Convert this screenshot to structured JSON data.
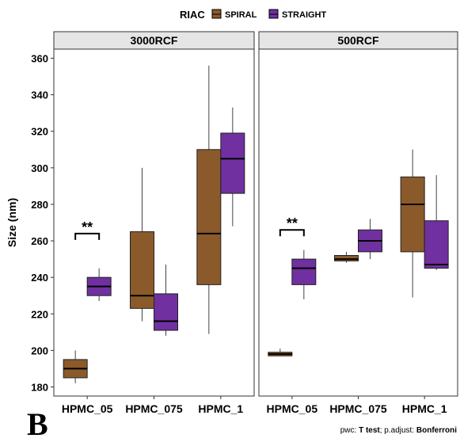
{
  "chart_data": {
    "type": "boxplot",
    "legend": {
      "title": "RIAC",
      "position": "top",
      "entries": [
        {
          "name": "SPIRAL",
          "color": "#8B5A2B"
        },
        {
          "name": "STRAIGHT",
          "color": "#7030A0"
        }
      ]
    },
    "ylabel": "Size (nm)",
    "ylim": [
      175,
      365
    ],
    "yticks": [
      180,
      200,
      220,
      240,
      260,
      280,
      300,
      320,
      340,
      360
    ],
    "categories": [
      "HPMC_05",
      "HPMC_075",
      "HPMC_1"
    ],
    "panels": [
      {
        "title": "3000RCF",
        "boxes": [
          {
            "category": "HPMC_05",
            "series": "SPIRAL",
            "min": 182,
            "q1": 185,
            "median": 190,
            "q3": 195,
            "max": 200
          },
          {
            "category": "HPMC_05",
            "series": "STRAIGHT",
            "min": 227,
            "q1": 230,
            "median": 235,
            "q3": 240,
            "max": 245
          },
          {
            "category": "HPMC_075",
            "series": "SPIRAL",
            "min": 216,
            "q1": 223,
            "median": 230,
            "q3": 265,
            "max": 300
          },
          {
            "category": "HPMC_075",
            "series": "STRAIGHT",
            "min": 208,
            "q1": 211,
            "median": 216,
            "q3": 231,
            "max": 247
          },
          {
            "category": "HPMC_1",
            "series": "SPIRAL",
            "min": 209,
            "q1": 236,
            "median": 264,
            "q3": 310,
            "max": 356
          },
          {
            "category": "HPMC_1",
            "series": "STRAIGHT",
            "min": 268,
            "q1": 286,
            "median": 305,
            "q3": 319,
            "max": 333
          }
        ],
        "annotations": [
          {
            "category": "HPMC_05",
            "label": "**",
            "y": 264
          }
        ]
      },
      {
        "title": "500RCF",
        "boxes": [
          {
            "category": "HPMC_05",
            "series": "SPIRAL",
            "min": 197,
            "q1": 197,
            "median": 198,
            "q3": 199,
            "max": 201
          },
          {
            "category": "HPMC_05",
            "series": "STRAIGHT",
            "min": 228,
            "q1": 236,
            "median": 245,
            "q3": 250,
            "max": 255
          },
          {
            "category": "HPMC_075",
            "series": "SPIRAL",
            "min": 248,
            "q1": 249,
            "median": 250,
            "q3": 252,
            "max": 254
          },
          {
            "category": "HPMC_075",
            "series": "STRAIGHT",
            "min": 250,
            "q1": 254,
            "median": 260,
            "q3": 266,
            "max": 272
          },
          {
            "category": "HPMC_1",
            "series": "SPIRAL",
            "min": 229,
            "q1": 254,
            "median": 280,
            "q3": 295,
            "max": 310
          },
          {
            "category": "HPMC_1",
            "series": "STRAIGHT",
            "min": 244,
            "q1": 245,
            "median": 247,
            "q3": 271,
            "max": 296
          }
        ],
        "annotations": [
          {
            "category": "HPMC_05",
            "label": "**",
            "y": 266
          }
        ]
      }
    ],
    "grid": false
  },
  "figure": {
    "panel_letter": "B",
    "caption_prefix": "pwc: ",
    "caption_test": "T test",
    "caption_middle": "; p.adjust: ",
    "caption_adjust": "Bonferroni"
  }
}
